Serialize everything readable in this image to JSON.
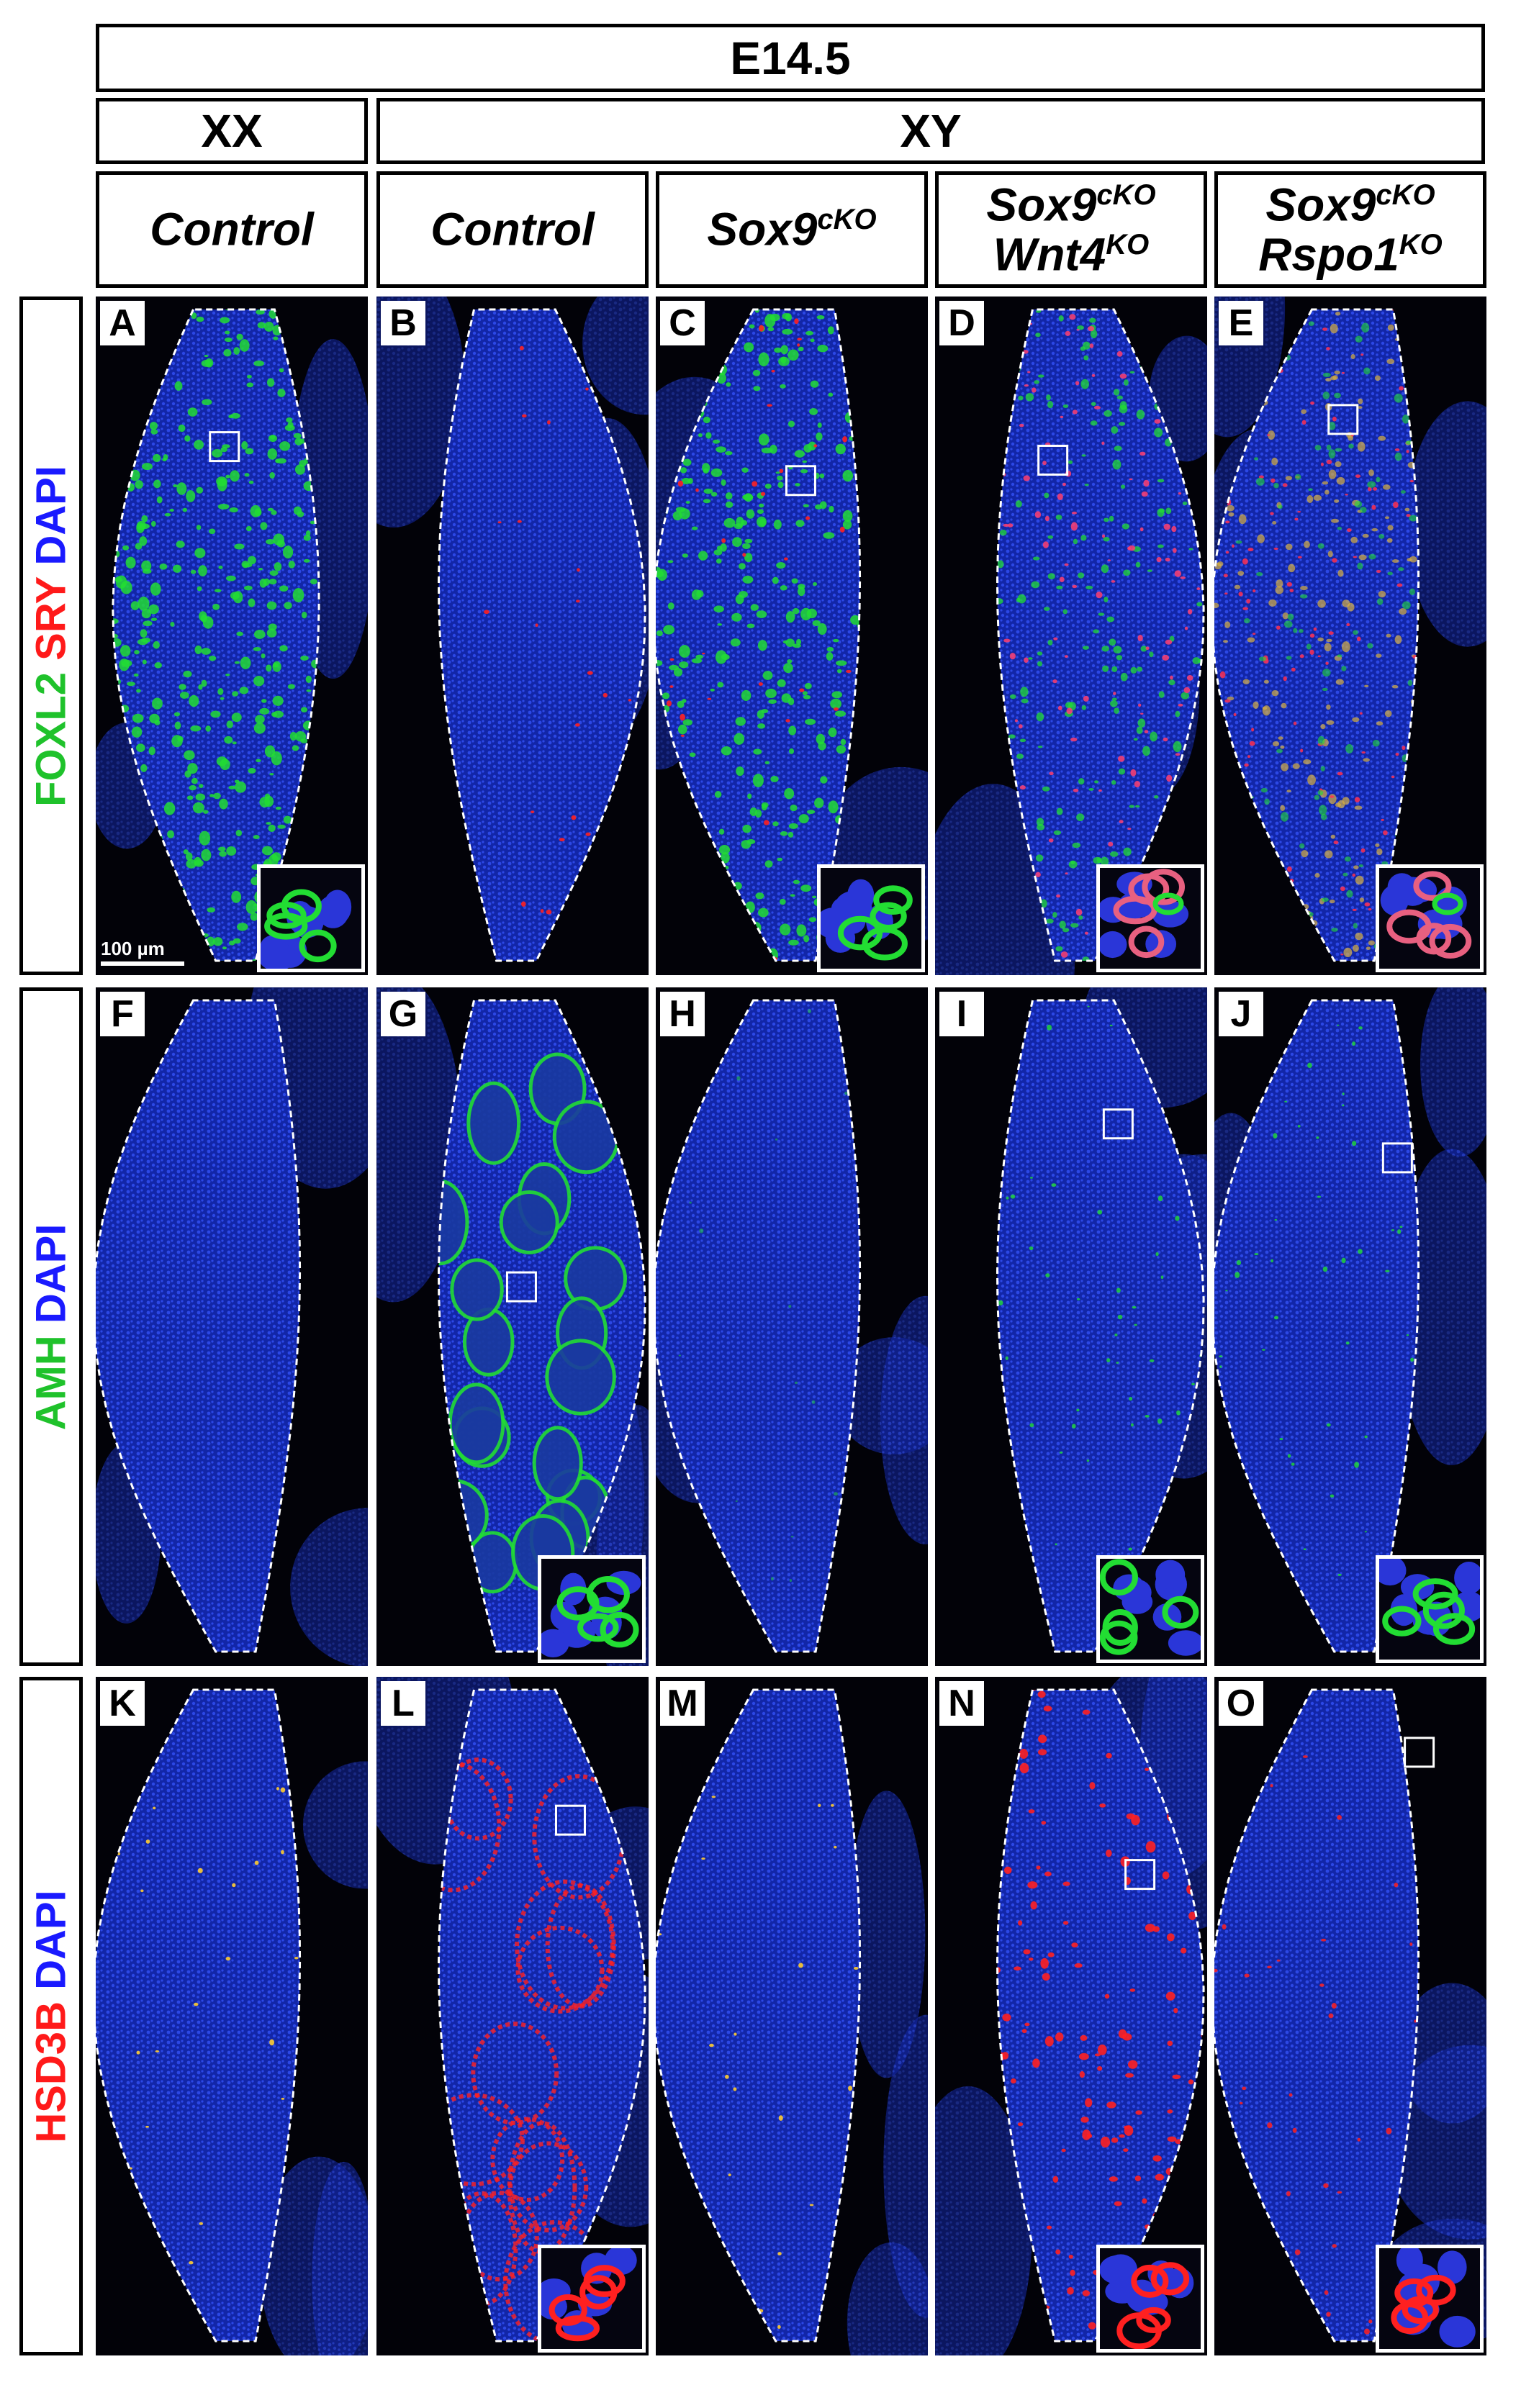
{
  "header": {
    "title": "E14.5"
  },
  "groups": {
    "xx": "XX",
    "xy": "XY"
  },
  "columns": [
    {
      "label_main": "Control",
      "sup": "",
      "label2_main": "",
      "sup2": ""
    },
    {
      "label_main": "Control",
      "sup": "",
      "label2_main": "",
      "sup2": ""
    },
    {
      "label_main": "Sox9",
      "sup": "cKO",
      "label2_main": "",
      "sup2": ""
    },
    {
      "label_main": "Sox9",
      "sup": "cKO",
      "label2_main": "Wnt4",
      "sup2": "KO"
    },
    {
      "label_main": "Sox9",
      "sup": "cKO",
      "label2_main": "Rspo1",
      "sup2": "KO"
    }
  ],
  "rows": [
    {
      "markers": [
        {
          "text": "FOXL2",
          "color": "#1fc22b"
        },
        {
          "text": " SRY",
          "color": "#ff1a1a"
        },
        {
          "text": " DAPI",
          "color": "#1a1aff"
        }
      ]
    },
    {
      "markers": [
        {
          "text": "AMH",
          "color": "#1fc22b"
        },
        {
          "text": " DAPI",
          "color": "#1a1aff"
        }
      ]
    },
    {
      "markers": [
        {
          "text": "HSD3B",
          "color": "#ff1a1a"
        },
        {
          "text": " DAPI",
          "color": "#1a1aff"
        }
      ]
    }
  ],
  "panel_letters": [
    "A",
    "B",
    "C",
    "D",
    "E",
    "F",
    "G",
    "H",
    "I",
    "J",
    "K",
    "L",
    "M",
    "N",
    "O"
  ],
  "scale_bar": "100 µm",
  "colors": {
    "dapi": "#1530c8",
    "green": "#22dd33",
    "red": "#ff2020",
    "background": "#020208"
  }
}
